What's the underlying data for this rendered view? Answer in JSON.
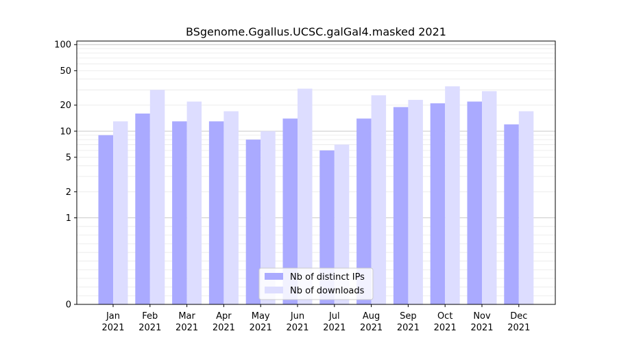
{
  "chart_data": {
    "type": "bar",
    "title": "BSgenome.Ggallus.UCSC.galGal4.masked 2021",
    "xlabel": "",
    "ylabel": "",
    "yscale": "symlog",
    "ylim": [
      0,
      110
    ],
    "yticks": [
      0,
      1,
      2,
      5,
      10,
      20,
      50,
      100
    ],
    "grid": true,
    "legend_placement": "lower-center",
    "categories": [
      [
        "Jan",
        "2021"
      ],
      [
        "Feb",
        "2021"
      ],
      [
        "Mar",
        "2021"
      ],
      [
        "Apr",
        "2021"
      ],
      [
        "May",
        "2021"
      ],
      [
        "Jun",
        "2021"
      ],
      [
        "Jul",
        "2021"
      ],
      [
        "Aug",
        "2021"
      ],
      [
        "Sep",
        "2021"
      ],
      [
        "Oct",
        "2021"
      ],
      [
        "Nov",
        "2021"
      ],
      [
        "Dec",
        "2021"
      ]
    ],
    "series": [
      {
        "name": "Nb of distinct IPs",
        "color": "#aaaaff",
        "values": [
          9,
          16,
          13,
          13,
          8,
          14,
          6,
          14,
          19,
          21,
          22,
          12
        ]
      },
      {
        "name": "Nb of downloads",
        "color": "#ddddff",
        "values": [
          13,
          30,
          22,
          17,
          10,
          31,
          7,
          26,
          23,
          33,
          29,
          17
        ]
      }
    ]
  }
}
